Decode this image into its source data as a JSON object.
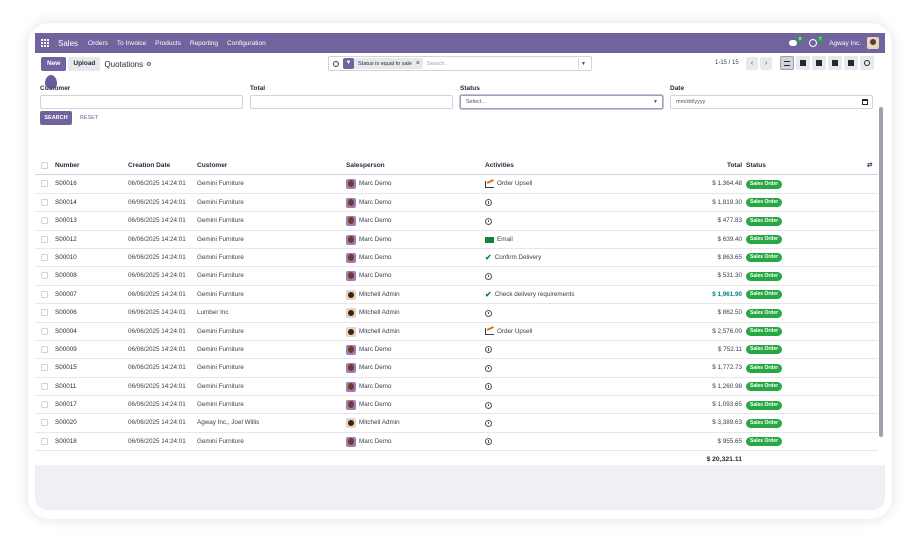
{
  "navbar": {
    "app_name": "Sales",
    "menu": [
      "Orders",
      "To Invoice",
      "Products",
      "Reporting",
      "Configuration"
    ],
    "messages_badge": "8",
    "activities_badge": "7",
    "company": "Agway Inc."
  },
  "control": {
    "new_label": "New",
    "upload_label": "Upload",
    "breadcrumb": "Quotations",
    "search_facet": "Status is equal to sale",
    "search_placeholder": "Search...",
    "pager": "1-15 / 15"
  },
  "filters": {
    "customer_label": "Customer",
    "total_label": "Total",
    "status_label": "Status",
    "status_value": "Select...",
    "date_label": "Date",
    "date_placeholder": "mm/dd/yyyy",
    "search_button": "SEARCH",
    "reset_button": "RESET"
  },
  "table": {
    "headers": {
      "number": "Number",
      "creation_date": "Creation Date",
      "customer": "Customer",
      "salesperson": "Salesperson",
      "activities": "Activities",
      "total": "Total",
      "status": "Status"
    },
    "rows": [
      {
        "number": "S00016",
        "date": "06/06/2025 14:24:01",
        "customer": "Gemini Furniture",
        "salesperson": "Marc Demo",
        "avatar": "marc",
        "activity_icon": "upsell-icon",
        "activity": "Order Upsell",
        "total": "$ 1,364.48",
        "status": "Sales Order"
      },
      {
        "number": "S00014",
        "date": "06/06/2025 14:24:01",
        "customer": "Gemini Furniture",
        "salesperson": "Marc Demo",
        "avatar": "marc",
        "activity_icon": "clock-icon",
        "activity": "",
        "total": "$ 1,819.30",
        "status": "Sales Order"
      },
      {
        "number": "S00013",
        "date": "06/06/2025 14:24:01",
        "customer": "Gemini Furniture",
        "salesperson": "Marc Demo",
        "avatar": "marc",
        "activity_icon": "clock-icon",
        "activity": "",
        "total": "$ 477.83",
        "status": "Sales Order"
      },
      {
        "number": "S00012",
        "date": "06/06/2025 14:24:01",
        "customer": "Gemini Furniture",
        "salesperson": "Marc Demo",
        "avatar": "marc",
        "activity_icon": "email-icon",
        "activity": "Email",
        "total": "$ 639.40",
        "status": "Sales Order"
      },
      {
        "number": "S00010",
        "date": "06/06/2025 14:24:01",
        "customer": "Gemini Furniture",
        "salesperson": "Marc Demo",
        "avatar": "marc",
        "activity_icon": "check-icon",
        "activity": "Confirm Delivery",
        "total": "$ 863.65",
        "status": "Sales Order"
      },
      {
        "number": "S00008",
        "date": "06/06/2025 14:24:01",
        "customer": "Gemini Furniture",
        "salesperson": "Marc Demo",
        "avatar": "marc",
        "activity_icon": "clock-icon",
        "activity": "",
        "total": "$ 531.30",
        "status": "Sales Order"
      },
      {
        "number": "S00007",
        "date": "06/06/2025 14:24:01",
        "customer": "Gemini Furniture",
        "salesperson": "Mitchell Admin",
        "avatar": "mitchell",
        "activity_icon": "check-icon",
        "activity": "Check delivery requirements",
        "total": "$ 1,961.90",
        "status": "Sales Order",
        "highlight": true
      },
      {
        "number": "S00006",
        "date": "06/06/2025 14:24:01",
        "customer": "Lumber Inc",
        "salesperson": "Mitchell Admin",
        "avatar": "mitchell",
        "activity_icon": "clock-icon",
        "activity": "",
        "total": "$ 862.50",
        "status": "Sales Order"
      },
      {
        "number": "S00004",
        "date": "06/06/2025 14:24:01",
        "customer": "Gemini Furniture",
        "salesperson": "Mitchell Admin",
        "avatar": "mitchell",
        "activity_icon": "upsell-icon",
        "activity": "Order Upsell",
        "total": "$ 2,576.00",
        "status": "Sales Order"
      },
      {
        "number": "S00009",
        "date": "06/06/2025 14:24:01",
        "customer": "Gemini Furniture",
        "salesperson": "Marc Demo",
        "avatar": "marc",
        "activity_icon": "clock-icon",
        "activity": "",
        "total": "$ 752.11",
        "status": "Sales Order"
      },
      {
        "number": "S00015",
        "date": "06/06/2025 14:24:01",
        "customer": "Gemini Furniture",
        "salesperson": "Marc Demo",
        "avatar": "marc",
        "activity_icon": "clock-icon",
        "activity": "",
        "total": "$ 1,772.73",
        "status": "Sales Order"
      },
      {
        "number": "S00011",
        "date": "06/06/2025 14:24:01",
        "customer": "Gemini Furniture",
        "salesperson": "Marc Demo",
        "avatar": "marc",
        "activity_icon": "clock-icon",
        "activity": "",
        "total": "$ 1,260.98",
        "status": "Sales Order"
      },
      {
        "number": "S00017",
        "date": "06/06/2025 14:24:01",
        "customer": "Gemini Furniture",
        "salesperson": "Marc Demo",
        "avatar": "marc",
        "activity_icon": "clock-icon",
        "activity": "",
        "total": "$ 1,093.65",
        "status": "Sales Order"
      },
      {
        "number": "S00020",
        "date": "06/06/2025 14:24:01",
        "customer": "Agway Inc., Joel Willis",
        "salesperson": "Mitchell Admin",
        "avatar": "mitchell",
        "activity_icon": "clock-icon",
        "activity": "",
        "total": "$ 3,389.63",
        "status": "Sales Order"
      },
      {
        "number": "S00018",
        "date": "06/06/2025 14:24:01",
        "customer": "Gemini Furniture",
        "salesperson": "Marc Demo",
        "avatar": "marc",
        "activity_icon": "clock-icon",
        "activity": "",
        "total": "$ 955.65",
        "status": "Sales Order"
      }
    ],
    "grand_total": "$ 20,321.11"
  },
  "colors": {
    "brand": "#71639e",
    "status_badge": "#28a745",
    "highlight_total": "#017e84"
  }
}
